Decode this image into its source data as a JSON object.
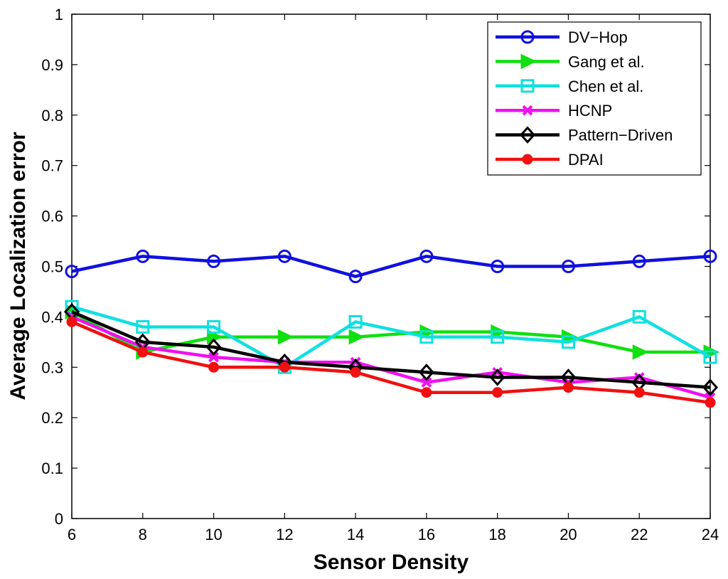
{
  "chart_data": {
    "type": "line",
    "title": "",
    "xlabel": "Sensor Density",
    "ylabel": "Average Localization error",
    "x": [
      6,
      8,
      10,
      12,
      14,
      16,
      18,
      20,
      22,
      24
    ],
    "xlim": [
      6,
      24
    ],
    "ylim": [
      0,
      1
    ],
    "xticks": [
      "6",
      "8",
      "10",
      "12",
      "14",
      "16",
      "18",
      "20",
      "22",
      "24"
    ],
    "yticks": [
      "0",
      "0.1",
      "0.2",
      "0.3",
      "0.4",
      "0.5",
      "0.6",
      "0.7",
      "0.8",
      "0.9",
      "1"
    ],
    "grid": false,
    "legend_position": "top-right",
    "series": [
      {
        "name": "DV−Hop",
        "color": "#1010e0",
        "marker": "circle-open",
        "values": [
          0.49,
          0.52,
          0.51,
          0.52,
          0.48,
          0.52,
          0.5,
          0.5,
          0.51,
          0.52
        ]
      },
      {
        "name": "Gang et al.",
        "color": "#10e010",
        "marker": "triangle-right",
        "values": [
          0.41,
          0.33,
          0.36,
          0.36,
          0.36,
          0.37,
          0.37,
          0.36,
          0.33,
          0.33
        ]
      },
      {
        "name": "Chen et al.",
        "color": "#10e0e0",
        "marker": "square-open",
        "values": [
          0.42,
          0.38,
          0.38,
          0.3,
          0.39,
          0.36,
          0.36,
          0.35,
          0.4,
          0.32
        ]
      },
      {
        "name": "HCNP",
        "color": "#f010f0",
        "marker": "x",
        "values": [
          0.4,
          0.34,
          0.32,
          0.31,
          0.31,
          0.27,
          0.29,
          0.27,
          0.28,
          0.24
        ]
      },
      {
        "name": "Pattern−Driven",
        "color": "#000000",
        "marker": "diamond-open",
        "values": [
          0.41,
          0.35,
          0.34,
          0.31,
          0.3,
          0.29,
          0.28,
          0.28,
          0.27,
          0.26
        ]
      },
      {
        "name": "DPAI",
        "color": "#f01010",
        "marker": "circle-filled",
        "values": [
          0.39,
          0.33,
          0.3,
          0.3,
          0.29,
          0.25,
          0.25,
          0.26,
          0.25,
          0.23
        ]
      }
    ]
  }
}
